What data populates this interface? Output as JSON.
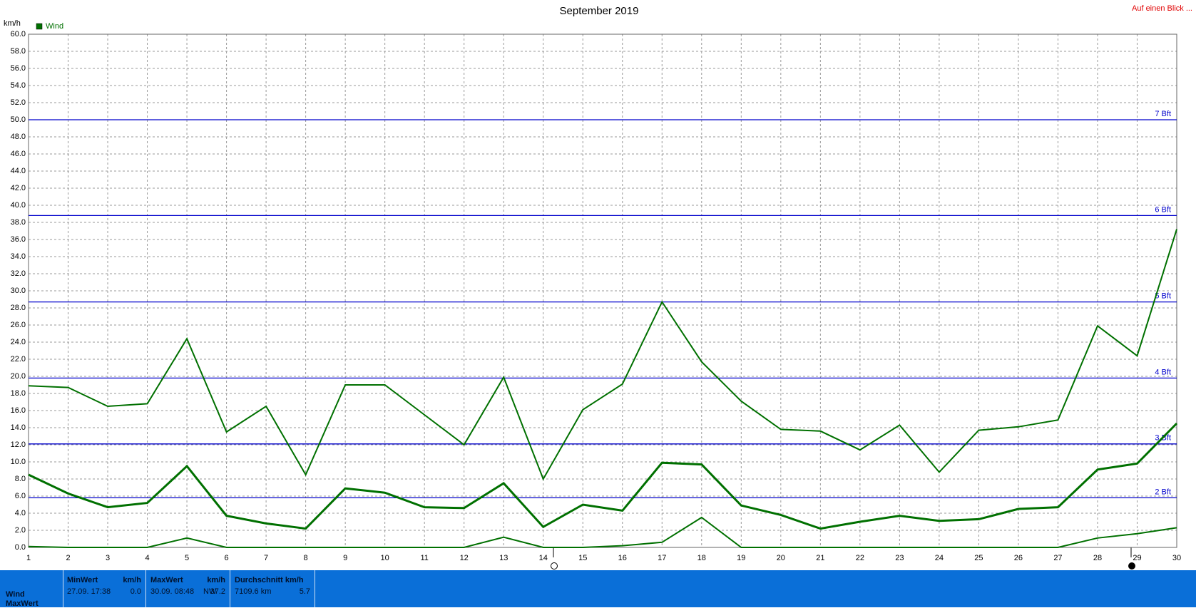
{
  "chart_data": {
    "type": "line",
    "title": "September 2019",
    "y_label": "km/h",
    "corner_link": "Auf einen Blick ...",
    "x": [
      1,
      2,
      3,
      4,
      5,
      6,
      7,
      8,
      9,
      10,
      11,
      12,
      13,
      14,
      15,
      16,
      17,
      18,
      19,
      20,
      21,
      22,
      23,
      24,
      25,
      26,
      27,
      28,
      29,
      30
    ],
    "xlim": [
      1,
      30
    ],
    "xticks": [
      1,
      2,
      3,
      4,
      5,
      6,
      7,
      8,
      9,
      10,
      11,
      12,
      13,
      14,
      15,
      16,
      17,
      18,
      19,
      20,
      21,
      22,
      23,
      24,
      25,
      26,
      27,
      28,
      29,
      30
    ],
    "ylim": [
      0,
      60
    ],
    "yticks": [
      {
        "value": 0,
        "label": "0.0"
      },
      {
        "value": 2,
        "label": "2.0"
      },
      {
        "value": 4,
        "label": "4.0"
      },
      {
        "value": 6,
        "label": "6.0"
      },
      {
        "value": 8,
        "label": "8.0"
      },
      {
        "value": 10,
        "label": "10.0"
      },
      {
        "value": 12,
        "label": "12.0"
      },
      {
        "value": 14,
        "label": "14.0"
      },
      {
        "value": 16,
        "label": "16.0"
      },
      {
        "value": 18,
        "label": "18.0"
      },
      {
        "value": 20,
        "label": "20.0"
      },
      {
        "value": 22,
        "label": "22.0"
      },
      {
        "value": 24,
        "label": "24.0"
      },
      {
        "value": 26,
        "label": "26.0"
      },
      {
        "value": 28,
        "label": "28.0"
      },
      {
        "value": 30,
        "label": "30.0"
      },
      {
        "value": 32,
        "label": "32.0"
      },
      {
        "value": 34,
        "label": "34.0"
      },
      {
        "value": 36,
        "label": "36.0"
      },
      {
        "value": 38,
        "label": "38.0"
      },
      {
        "value": 40,
        "label": "40.0"
      },
      {
        "value": 42,
        "label": "42.0"
      },
      {
        "value": 44,
        "label": "44.0"
      },
      {
        "value": 46,
        "label": "46.0"
      },
      {
        "value": 48,
        "label": "48.0"
      },
      {
        "value": 50,
        "label": "50.0"
      },
      {
        "value": 52,
        "label": "52.0"
      },
      {
        "value": 54,
        "label": "54.0"
      },
      {
        "value": 56,
        "label": "56.0"
      },
      {
        "value": 58,
        "label": "58.0"
      },
      {
        "value": 60,
        "label": "60.0"
      }
    ],
    "grid": true,
    "series": [
      {
        "name": "Wind",
        "color": "#007000",
        "values": [
          8.5,
          6.3,
          4.7,
          5.2,
          9.5,
          3.7,
          2.8,
          2.2,
          6.9,
          6.4,
          4.7,
          4.6,
          7.5,
          2.4,
          5.0,
          4.3,
          9.9,
          9.7,
          4.9,
          3.8,
          2.2,
          3.0,
          3.7,
          3.1,
          3.3,
          4.5,
          4.7,
          9.1,
          9.8,
          14.5
        ]
      },
      {
        "color": "#007000",
        "values": [
          18.9,
          18.7,
          16.5,
          16.8,
          24.4,
          13.5,
          16.5,
          8.5,
          19.0,
          19.0,
          15.5,
          12.0,
          19.9,
          8.0,
          16.1,
          19.1,
          28.7,
          21.7,
          17.1,
          13.8,
          13.6,
          11.4,
          14.3,
          8.8,
          13.7,
          14.1,
          14.9,
          25.9,
          22.4,
          37.2
        ]
      },
      {
        "color": "#007000",
        "values": [
          0.1,
          0,
          0,
          0,
          1.1,
          0,
          0,
          0,
          0,
          0,
          0,
          0,
          1.2,
          0,
          0,
          0.2,
          0.6,
          3.5,
          0,
          0,
          0,
          0,
          0,
          0,
          0,
          0,
          0,
          1.1,
          1.6,
          2.3
        ]
      }
    ],
    "reference_lines": [
      {
        "value": 5.8,
        "label": "2 Bft"
      },
      {
        "value": 12.1,
        "label": "3 Bft"
      },
      {
        "value": 19.8,
        "label": "4 Bft"
      },
      {
        "value": 28.7,
        "label": "5 Bft"
      },
      {
        "value": 38.8,
        "label": "6 Bft"
      },
      {
        "value": 50.0,
        "label": "7 Bft"
      }
    ],
    "reference_color": "#0000cc",
    "summary": {
      "row_labels": [
        "Wind",
        "MaxWert"
      ],
      "min": {
        "header": "MinWert",
        "unit": "km/h",
        "time": "27.09. 17:38",
        "value": "0.0"
      },
      "max": {
        "header": "MaxWert",
        "unit": "km/h",
        "time": "30.09. 08:48",
        "direction": "NW",
        "value": "37.2"
      },
      "avg": {
        "header": "Durchschnitt km/h",
        "distance": "7109.6 km",
        "value": "5.7"
      }
    }
  }
}
